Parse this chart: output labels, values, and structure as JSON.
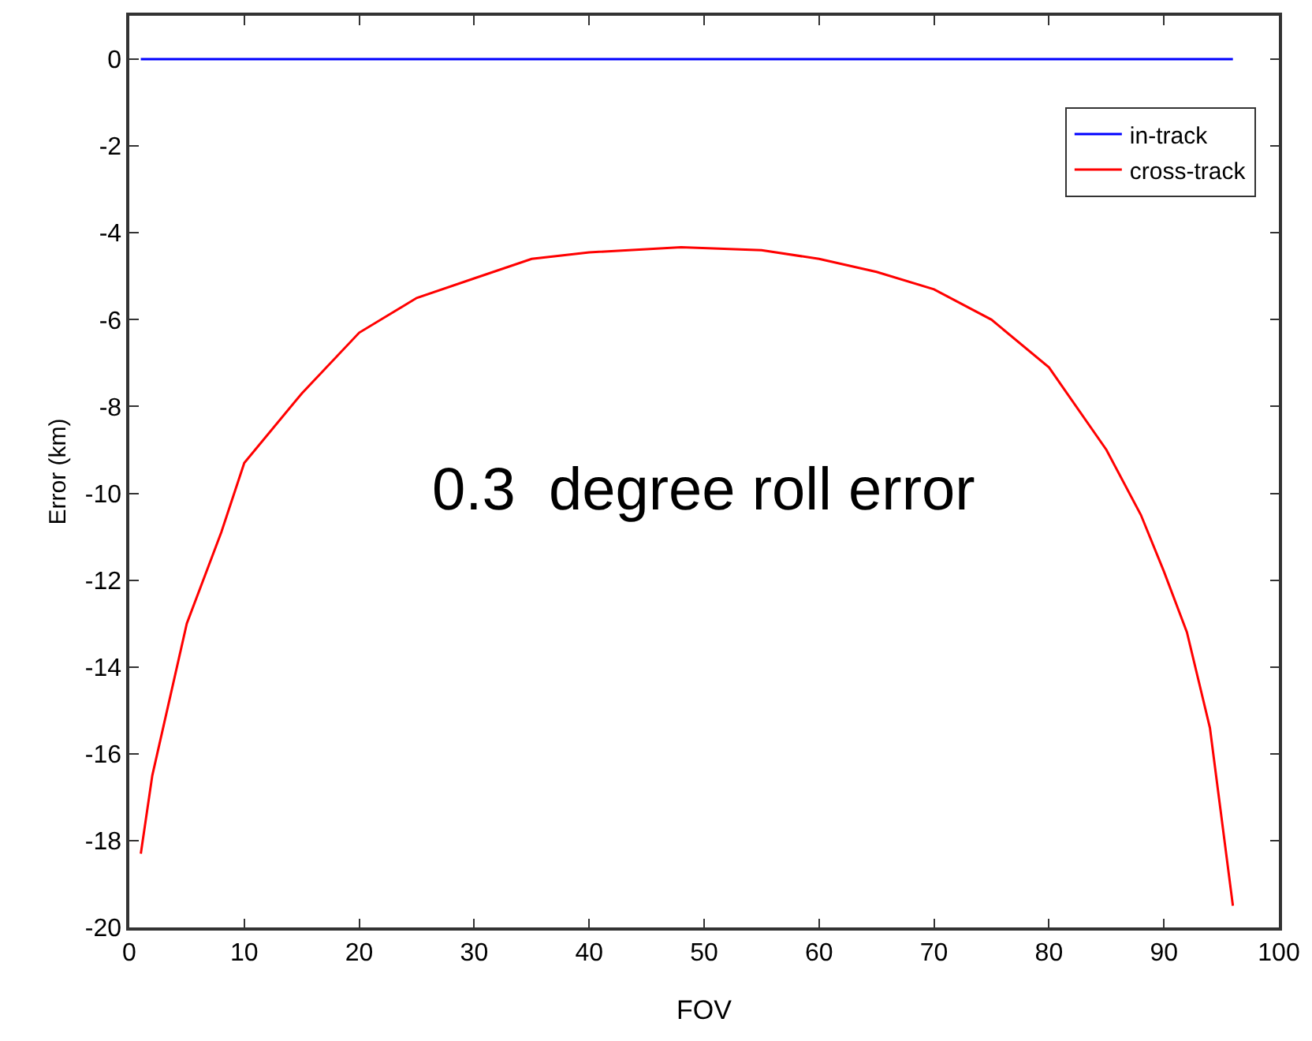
{
  "chart_data": {
    "type": "line",
    "xlabel": "FOV",
    "ylabel": "Error (km)",
    "annotations": [
      "0.3  degree roll error"
    ],
    "xlim": [
      0,
      100
    ],
    "xticks": [
      0,
      10,
      20,
      30,
      40,
      50,
      60,
      70,
      80,
      90,
      100
    ],
    "ylim": [
      -20,
      1
    ],
    "yticks": [
      -20,
      -18,
      -16,
      -14,
      -12,
      -10,
      -8,
      -6,
      -4,
      -2,
      0
    ],
    "legend": "top right",
    "marker": "none",
    "line_style": "solid",
    "series": [
      {
        "name": "in-track",
        "color": "#0000ff",
        "x": [
          1,
          96
        ],
        "values": [
          0,
          0
        ]
      },
      {
        "name": "cross-track",
        "color": "#ff0000",
        "x": [
          1,
          2,
          5,
          8,
          10,
          15,
          20,
          25,
          30,
          35,
          40,
          48,
          55,
          60,
          65,
          70,
          75,
          80,
          85,
          88,
          90,
          92,
          94,
          96
        ],
        "values": [
          -18.3,
          -16.5,
          -13,
          -10.9,
          -9.3,
          -7.7,
          -6.3,
          -5.5,
          -5.05,
          -4.6,
          -4.45,
          -4.33,
          -4.4,
          -4.6,
          -4.9,
          -5.3,
          -6.0,
          -7.1,
          -9.0,
          -10.5,
          -11.8,
          -13.2,
          -15.4,
          -19.5
        ]
      }
    ]
  }
}
